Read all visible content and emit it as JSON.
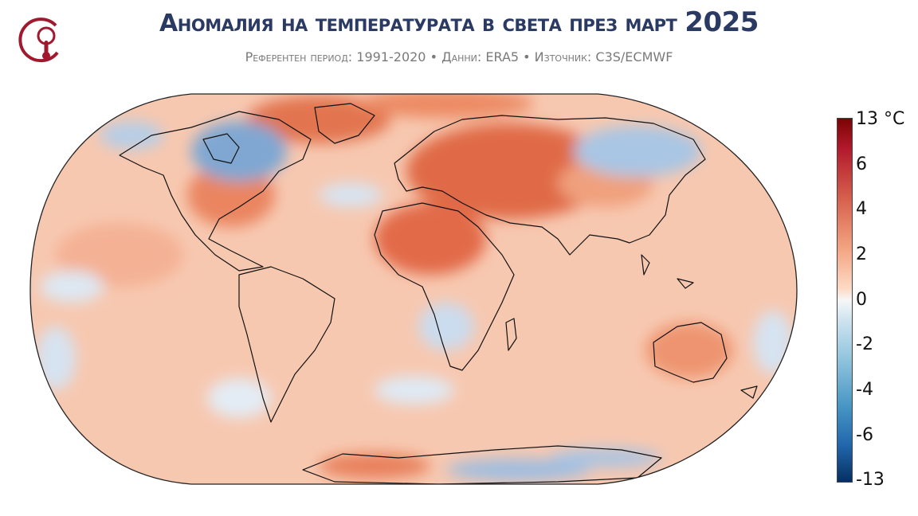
{
  "header": {
    "title": "Аномалия на температурата в света през март",
    "title_year": "2025",
    "subtitle": "Референтен период: 1991-2020 • Данни: ERA5 • Източник: C3S/ECMWF"
  },
  "logo": {
    "icon": "thermometer-logo-icon",
    "color": "#a0192f"
  },
  "map": {
    "projection": "Robinson",
    "variable": "surface air temperature anomaly",
    "colormap": "RdBu_r"
  },
  "colorbar": {
    "unit_label": "°C",
    "ticks": [
      "13",
      "6",
      "4",
      "2",
      "0",
      "-2",
      "-4",
      "-6",
      "-13"
    ]
  },
  "colors": {
    "title": "#2b3a63",
    "subtitle": "#7a7a7a",
    "warm_max": "#7a0403",
    "cold_max": "#053061"
  }
}
